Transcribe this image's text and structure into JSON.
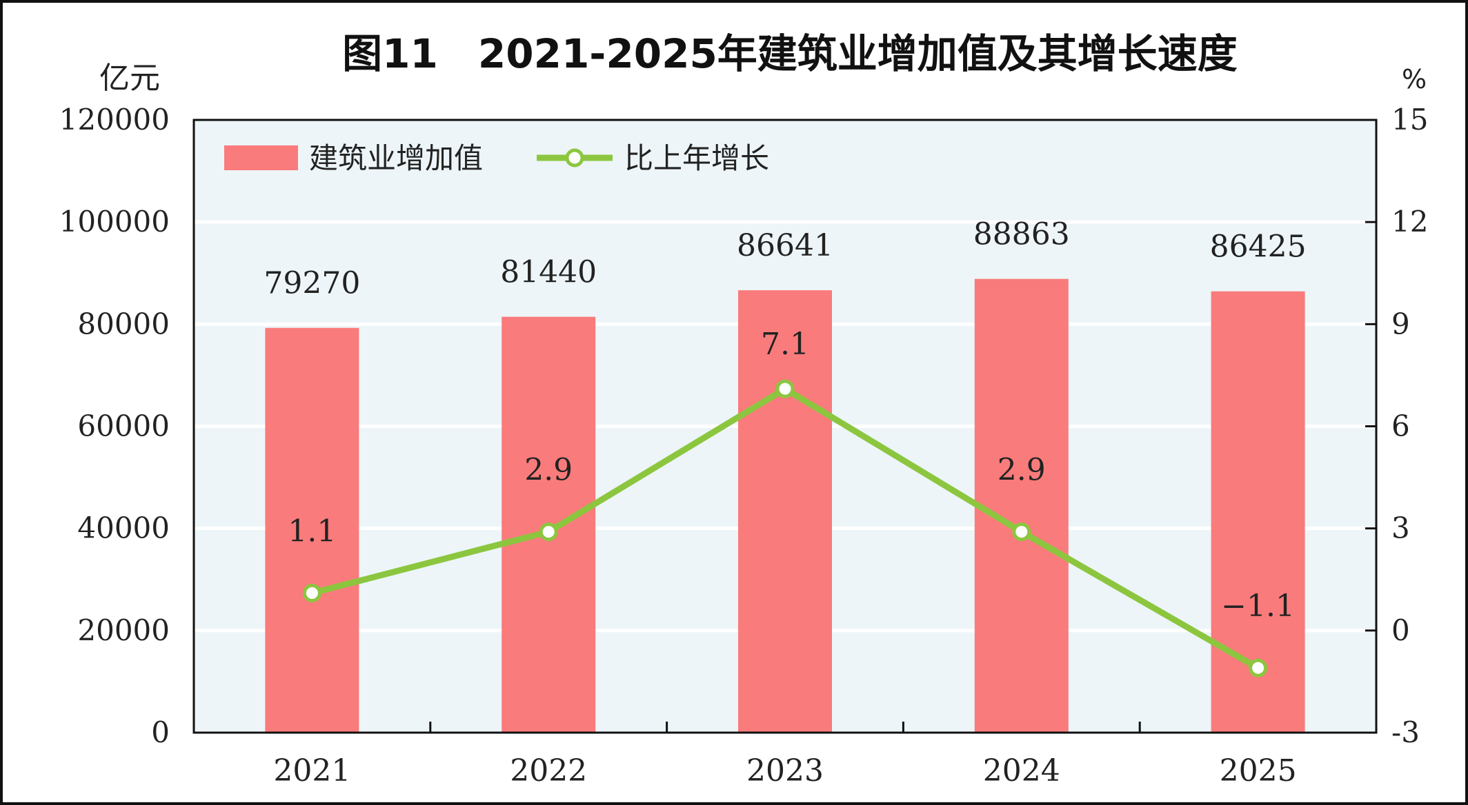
{
  "chart_data": {
    "type": "bar+line",
    "title": "图11　2021-2025年建筑业增加值及其增长速度",
    "ylabel_left": "亿元",
    "ylabel_right": "%",
    "categories": [
      "2021",
      "2022",
      "2023",
      "2024",
      "2025"
    ],
    "series": [
      {
        "name": "建筑业增加值",
        "type": "bar",
        "axis": "left",
        "values": [
          79270,
          81440,
          86641,
          88863,
          86425
        ],
        "labels": [
          "79270",
          "81440",
          "86641",
          "88863",
          "86425"
        ]
      },
      {
        "name": "比上年增长",
        "type": "line",
        "axis": "right",
        "values": [
          1.1,
          2.9,
          7.1,
          2.9,
          -1.1
        ],
        "labels": [
          "1.1",
          "2.9",
          "7.1",
          "2.9",
          "−1.1"
        ]
      }
    ],
    "ylim_left": [
      0,
      120000
    ],
    "yticks_left": [
      "0",
      "20000",
      "40000",
      "60000",
      "80000",
      "100000",
      "120000"
    ],
    "ylim_right": [
      -3,
      15
    ],
    "yticks_right": [
      "-3",
      "0",
      "3",
      "6",
      "9",
      "12",
      "15"
    ],
    "grid": true,
    "legend_position": "top-left",
    "colors": {
      "bar": "#f97b7b",
      "line": "#8cc63f",
      "plot_bg": "#edf5f8",
      "marker_fill": "#ffffff"
    }
  }
}
